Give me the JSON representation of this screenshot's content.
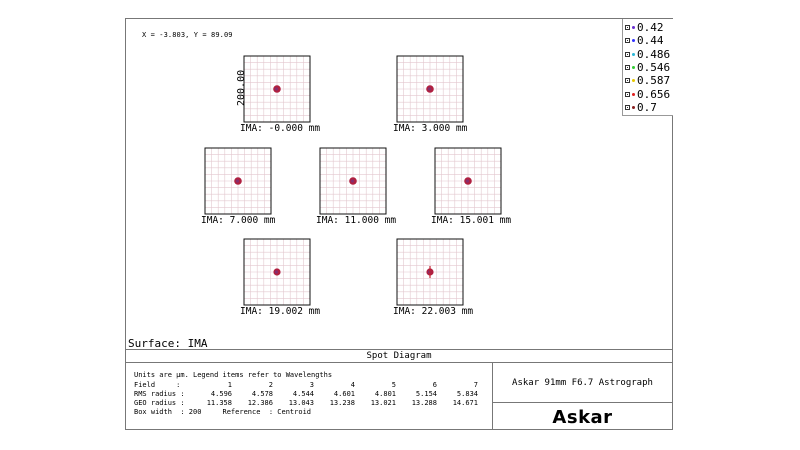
{
  "coord_readout": "X = -3.803, Y = 89.09",
  "surface_label": "Surface: IMA",
  "title": "Spot Diagram",
  "lens_name": "Askar 91mm F6.7 Astrograph",
  "brand": "Askar",
  "legend": [
    {
      "label": "0.42",
      "color": "#6a2fd0"
    },
    {
      "label": "0.44",
      "color": "#3333ff"
    },
    {
      "label": "0.486",
      "color": "#2ab8d8"
    },
    {
      "label": "0.546",
      "color": "#33cc33"
    },
    {
      "label": "0.587",
      "color": "#e6c800"
    },
    {
      "label": "0.656",
      "color": "#e02020"
    },
    {
      "label": "0.7",
      "color": "#8a2020"
    }
  ],
  "info": {
    "units_note": "Units are µm. Legend items refer to Wavelengths",
    "field_label": "Field     :",
    "rms_label": "RMS radius :",
    "geo_label": "GEO radius :",
    "fields": [
      "1",
      "2",
      "3",
      "4",
      "5",
      "6",
      "7"
    ],
    "rms": [
      "4.596",
      "4.578",
      "4.544",
      "4.601",
      "4.801",
      "5.154",
      "5.834"
    ],
    "geo": [
      "11.358",
      "12.386",
      "13.043",
      "13.238",
      "13.021",
      "13.288",
      "14.671"
    ],
    "box_line": "Box width  : 200     Reference  : Centroid"
  },
  "chart_data": {
    "type": "scatter",
    "box_width": 200,
    "scale_label": "200.00",
    "spot_color": "#b02040",
    "fields": [
      {
        "label": "IMA: -0.000 mm"
      },
      {
        "label": "IMA: 3.000 mm"
      },
      {
        "label": "IMA: 7.000 mm"
      },
      {
        "label": "IMA: 11.000 mm"
      },
      {
        "label": "IMA: 15.001 mm"
      },
      {
        "label": "IMA: 19.002 mm"
      },
      {
        "label": "IMA: 22.003 mm"
      }
    ]
  }
}
